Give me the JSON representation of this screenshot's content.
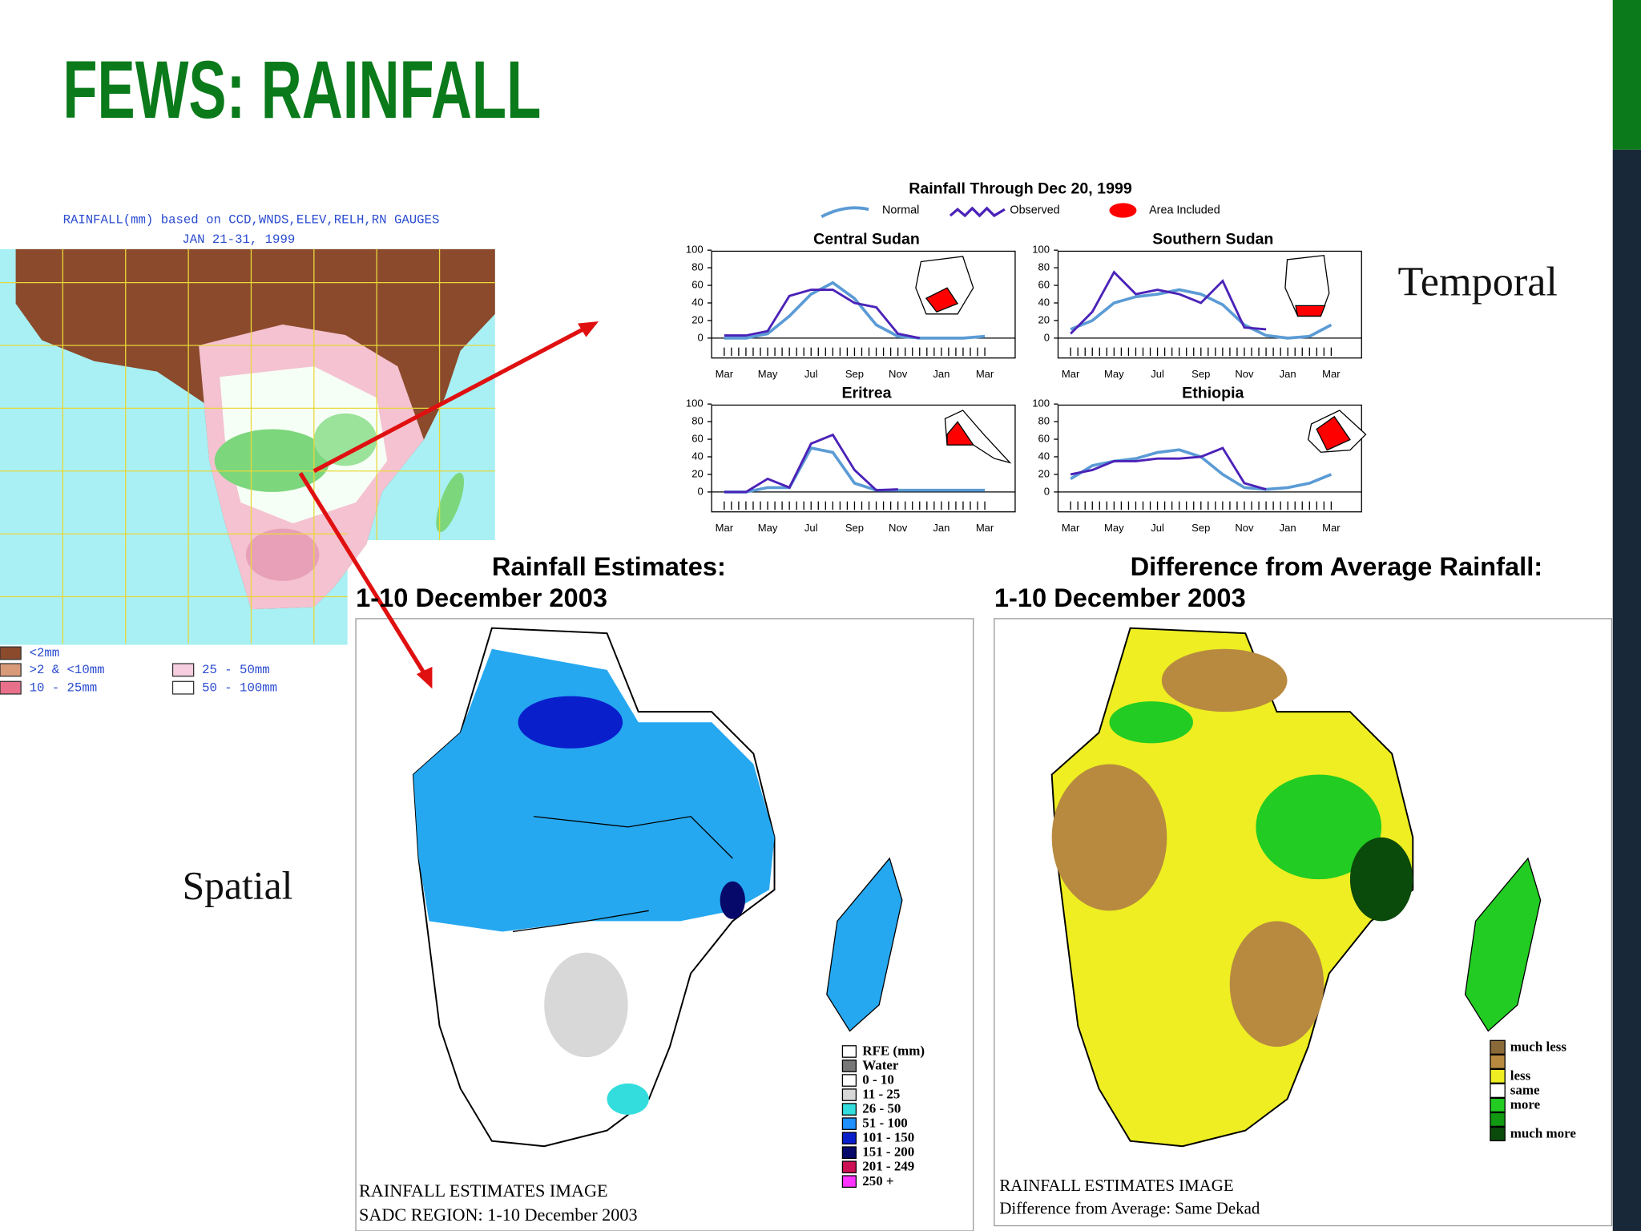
{
  "title": "FEWS: RAINFALL",
  "labels": {
    "temporal": "Temporal",
    "spatial": "Spatial"
  },
  "africa_map": {
    "heading": [
      "RAINFALL(mm) based on CCD,WNDS,ELEV,RELH,RN GAUGES",
      "JAN 21-31, 1999"
    ],
    "legend": [
      {
        "label": "<2mm",
        "color": "#8b4a2b"
      },
      {
        "label": ">2 & <10mm",
        "color": "#d99a7a"
      },
      {
        "label": "10 - 25mm",
        "color": "#e8708a"
      },
      {
        "label": "25 - 50mm",
        "color": "#f7cde0"
      },
      {
        "label": "50 - 100mm",
        "color": "#ffffff"
      }
    ]
  },
  "temporal": {
    "title": "Rainfall Through Dec 20, 1999",
    "legend": [
      {
        "label": "Normal",
        "color": "#5b9bd5"
      },
      {
        "label": "Observed",
        "color": "#4b22b8"
      },
      {
        "label": "Area Included",
        "color": "#ff0000"
      }
    ]
  },
  "chart_data": [
    {
      "type": "line",
      "title": "Central Sudan",
      "categories": [
        "Mar",
        null,
        "May",
        null,
        "Jul",
        null,
        "Sep",
        null,
        "Nov",
        null,
        "Jan",
        null,
        "Mar"
      ],
      "ylim": [
        0,
        100
      ],
      "yticks": [
        0,
        20,
        40,
        60,
        80,
        100
      ],
      "series": [
        {
          "color": "#5b9bd5",
          "values": [
            0,
            0,
            5,
            25,
            50,
            63,
            45,
            15,
            2,
            0,
            0,
            0,
            2
          ]
        },
        {
          "color": "#4b22b8",
          "values": [
            3,
            3,
            8,
            48,
            55,
            55,
            40,
            35,
            5,
            0,
            null,
            null,
            null
          ]
        }
      ]
    },
    {
      "type": "line",
      "title": "Southern Sudan",
      "categories": [
        "Mar",
        null,
        "May",
        null,
        "Jul",
        null,
        "Sep",
        null,
        "Nov",
        null,
        "Jan",
        null,
        "Mar"
      ],
      "ylim": [
        0,
        100
      ],
      "yticks": [
        0,
        20,
        40,
        60,
        80,
        100
      ],
      "series": [
        {
          "color": "#5b9bd5",
          "values": [
            10,
            20,
            40,
            47,
            50,
            55,
            50,
            38,
            15,
            3,
            0,
            2,
            15
          ]
        },
        {
          "color": "#4b22b8",
          "values": [
            5,
            30,
            75,
            50,
            55,
            50,
            40,
            65,
            12,
            10,
            null,
            null,
            null
          ]
        }
      ]
    },
    {
      "type": "line",
      "title": "Eritrea",
      "categories": [
        "Mar",
        null,
        "May",
        null,
        "Jul",
        null,
        "Sep",
        null,
        "Nov",
        null,
        "Jan",
        null,
        "Mar"
      ],
      "ylim": [
        0,
        100
      ],
      "yticks": [
        0,
        20,
        40,
        60,
        80,
        100
      ],
      "series": [
        {
          "color": "#5b9bd5",
          "values": [
            0,
            0,
            5,
            5,
            50,
            45,
            10,
            2,
            2,
            2,
            2,
            2,
            2
          ]
        },
        {
          "color": "#4b22b8",
          "values": [
            0,
            0,
            15,
            5,
            55,
            65,
            25,
            2,
            3,
            null,
            null,
            null,
            null
          ]
        }
      ]
    },
    {
      "type": "line",
      "title": "Ethiopia",
      "categories": [
        "Mar",
        null,
        "May",
        null,
        "Jul",
        null,
        "Sep",
        null,
        "Nov",
        null,
        "Jan",
        null,
        "Mar"
      ],
      "ylim": [
        0,
        100
      ],
      "yticks": [
        0,
        20,
        40,
        60,
        80,
        100
      ],
      "series": [
        {
          "color": "#5b9bd5",
          "values": [
            15,
            30,
            35,
            38,
            45,
            48,
            40,
            20,
            5,
            3,
            5,
            10,
            20
          ]
        },
        {
          "color": "#4b22b8",
          "values": [
            20,
            25,
            35,
            35,
            38,
            38,
            40,
            50,
            10,
            3,
            null,
            null,
            null
          ]
        }
      ]
    }
  ],
  "estimates": {
    "heading": [
      "Rainfall Estimates:",
      "1-10 December 2003"
    ],
    "legend": [
      {
        "label": "RFE (mm)",
        "color": "#ffffff"
      },
      {
        "label": "Water",
        "color": "#777777"
      },
      {
        "label": "0 - 10",
        "color": "#ffffff"
      },
      {
        "label": "11 - 25",
        "color": "#d8d8d8"
      },
      {
        "label": "26 - 50",
        "color": "#33dddd"
      },
      {
        "label": "51 - 100",
        "color": "#1e90ff"
      },
      {
        "label": "101 - 150",
        "color": "#0a1fcc"
      },
      {
        "label": "151 - 200",
        "color": "#06096a"
      },
      {
        "label": "201 - 249",
        "color": "#cc1155"
      },
      {
        "label": "250 +",
        "color": "#ff33ff"
      }
    ],
    "caption": [
      "RAINFALL ESTIMATES IMAGE",
      "SADC REGION: 1-10 December 2003"
    ]
  },
  "difference": {
    "heading": [
      "Difference from Average Rainfall:",
      "1-10 December 2003"
    ],
    "legend": [
      {
        "label": "much less",
        "color": "#8b6a3a"
      },
      {
        "label": null,
        "color": "#b88a40"
      },
      {
        "label": "less",
        "color": "#eeee22"
      },
      {
        "label": "same",
        "color": "#ffffff"
      },
      {
        "label": "more",
        "color": "#22cc22"
      },
      {
        "label": null,
        "color": "#119911"
      },
      {
        "label": "much more",
        "color": "#0a4a0a"
      }
    ],
    "caption": [
      "RAINFALL ESTIMATES IMAGE",
      "Difference from Average: Same Dekad"
    ]
  }
}
